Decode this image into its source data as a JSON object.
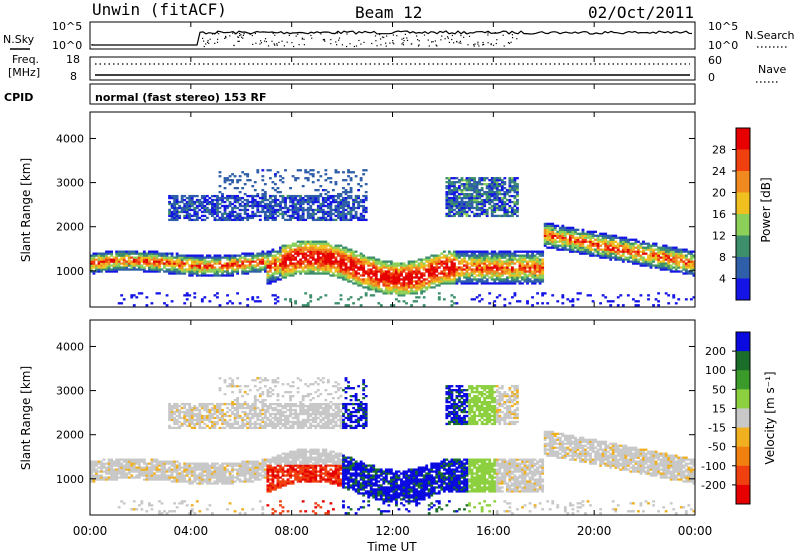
{
  "header": {
    "station": "Unwin (fitACF)",
    "beam": "Beam 12",
    "date": "02/Oct/2011"
  },
  "status_panels": {
    "nsky_label": "N.Sky",
    "nsearch_label": "N.Search",
    "noise_ticks": [
      "10^5",
      "10^0"
    ],
    "freq_label_1": "Freq.",
    "freq_label_2": "[MHz]",
    "freq_ticks": [
      "18",
      "8"
    ],
    "nave_label": "Nave",
    "nave_ticks": [
      "60",
      "0"
    ],
    "cpid_label": "CPID",
    "cpid_text": "normal (fast stereo) 153 RF"
  },
  "chart_data": [
    {
      "type": "heatmap",
      "name": "power",
      "ylabel": "Slant Range [km]",
      "xlabel": "Time UT",
      "x_ticks": [
        "00:00",
        "04:00",
        "08:00",
        "12:00",
        "16:00",
        "20:00",
        "00:00"
      ],
      "x_range_hours": [
        0,
        24
      ],
      "y_ticks": [
        1000,
        2000,
        3000,
        4000
      ],
      "y_range_km": [
        180,
        4600
      ],
      "colorbar_label": "Power [dB]",
      "colorbar_ticks": [
        4,
        8,
        12,
        16,
        20,
        24,
        28
      ],
      "colorbar_range": [
        0,
        32
      ],
      "colors": [
        "#1414e6",
        "#2f5fa8",
        "#3c8f6a",
        "#8cd05a",
        "#f0c020",
        "#f08a20",
        "#f04010",
        "#e60000"
      ]
    },
    {
      "type": "heatmap",
      "name": "velocity",
      "ylabel": "Slant Range [km]",
      "xlabel": "Time UT",
      "x_ticks": [
        "00:00",
        "04:00",
        "08:00",
        "12:00",
        "16:00",
        "20:00",
        "00:00"
      ],
      "x_range_hours": [
        0,
        24
      ],
      "y_ticks": [
        1000,
        2000,
        3000,
        4000
      ],
      "y_range_km": [
        180,
        4600
      ],
      "colorbar_label": "Velocity [m s⁻¹]",
      "colorbar_ticks": [
        200,
        100,
        50,
        15,
        -15,
        -50,
        -100,
        -200
      ],
      "colors": [
        "#0a0ae0",
        "#1a6e2a",
        "#3a9a2a",
        "#8cd040",
        "#c8c8c8",
        "#f0b020",
        "#f08010",
        "#f04010",
        "#e60000"
      ]
    }
  ],
  "footer": {
    "time_label": "Time UT"
  }
}
